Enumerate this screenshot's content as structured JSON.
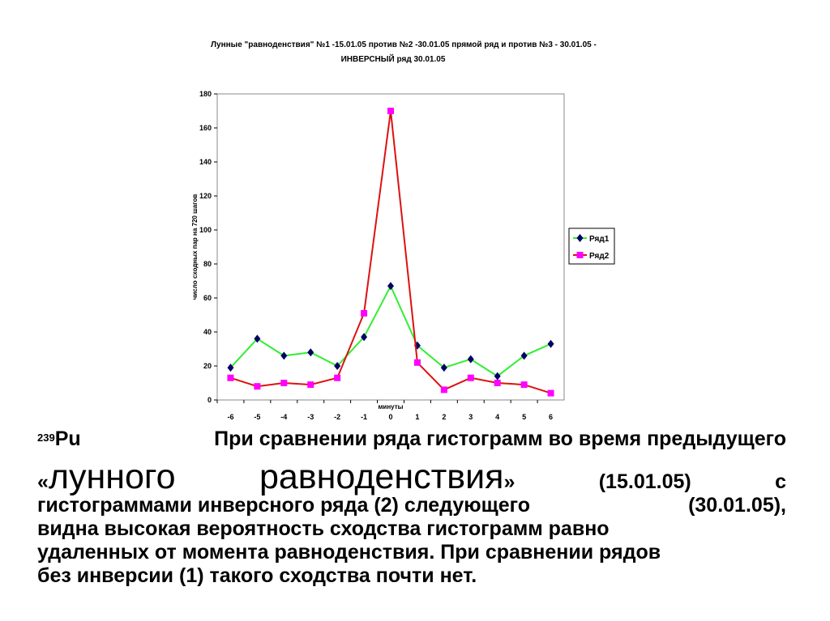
{
  "chart_data": {
    "type": "line",
    "title_line1": "Лунные \"равноденствия\" №1 -15.01.05 против №2 -30.01.05 прямой ряд и против №3 - 30.01.05 -",
    "title_line2": "ИНВЕРСНЫЙ ряд 30.01.05",
    "ylabel": "число сходных пар на 720 шагов",
    "xlabel": "минуты",
    "categories": [
      "-6",
      "-5",
      "-4",
      "-3",
      "-2",
      "-1",
      "0",
      "1",
      "2",
      "3",
      "4",
      "5",
      "6"
    ],
    "ylim": [
      0,
      180
    ],
    "yticks": [
      "0",
      "20",
      "40",
      "60",
      "80",
      "100",
      "120",
      "140",
      "160",
      "180"
    ],
    "grid": false,
    "legend_position": "right",
    "series": [
      {
        "name": "Ряд1",
        "line_color": "#33ee33",
        "marker_color": "#000066",
        "marker": "diamond",
        "values": [
          19,
          36,
          26,
          28,
          20,
          37,
          67,
          32,
          19,
          24,
          14,
          26,
          33
        ]
      },
      {
        "name": "Ряд2",
        "line_color": "#dd1111",
        "marker_color": "#ff00ff",
        "marker": "square",
        "values": [
          13,
          8,
          10,
          9,
          13,
          51,
          170,
          22,
          6,
          13,
          10,
          9,
          4
        ]
      }
    ]
  },
  "caption": {
    "sup": "239",
    "element": "Pu",
    "line1": "При сравнении ряда гистограмм во время предыдущего",
    "open_quote": "«",
    "big_word1": "лунного",
    "big_word2": "равноденствия",
    "close_quote": "»",
    "date1": "(15.01.05)",
    "conj": "с",
    "line3_left": "гистограммами инверсного ряда (2) следующего",
    "date2": "(30.01.05),",
    "line4": "видна высокая вероятность сходства гистограмм равно",
    "line5": "удаленных от момента равноденствия.  При сравнении рядов",
    "line6": "без инверсии (1) такого сходства почти нет."
  }
}
